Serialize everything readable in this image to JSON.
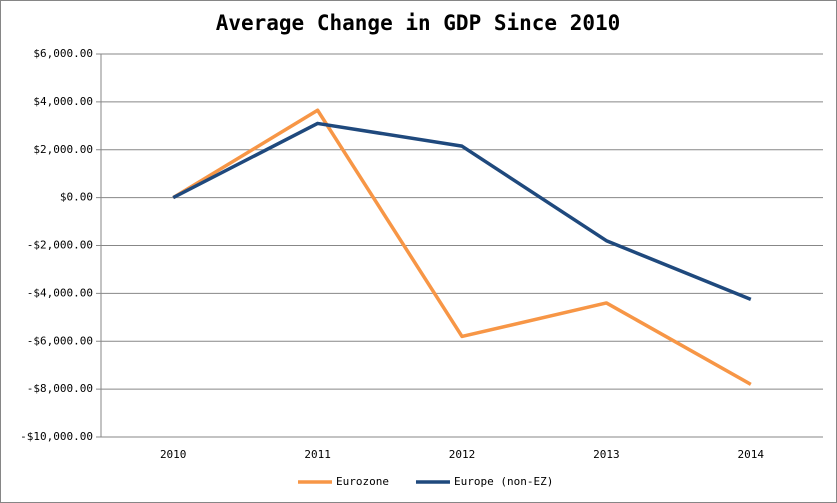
{
  "chart_data": {
    "type": "line",
    "title": "Average Change in GDP Since 2010",
    "categories": [
      "2010",
      "2011",
      "2012",
      "2013",
      "2014"
    ],
    "series": [
      {
        "name": "Eurozone",
        "color": "#f79646",
        "values": [
          0,
          3650,
          -5800,
          -4400,
          -7800
        ]
      },
      {
        "name": "Europe (non-EZ)",
        "color": "#1f497d",
        "values": [
          0,
          3100,
          2150,
          -1800,
          -4250
        ]
      }
    ],
    "ylim": [
      -10000,
      6000
    ],
    "yticks": [
      {
        "value": -10000,
        "label": "-$10,000.00"
      },
      {
        "value": -8000,
        "label": "-$8,000.00"
      },
      {
        "value": -6000,
        "label": "-$6,000.00"
      },
      {
        "value": -4000,
        "label": "-$4,000.00"
      },
      {
        "value": -2000,
        "label": "-$2,000.00"
      },
      {
        "value": 0,
        "label": "$0.00"
      },
      {
        "value": 2000,
        "label": "$2,000.00"
      },
      {
        "value": 4000,
        "label": "$4,000.00"
      },
      {
        "value": 6000,
        "label": "$6,000.00"
      }
    ],
    "grid": true,
    "legend": "bottom"
  }
}
